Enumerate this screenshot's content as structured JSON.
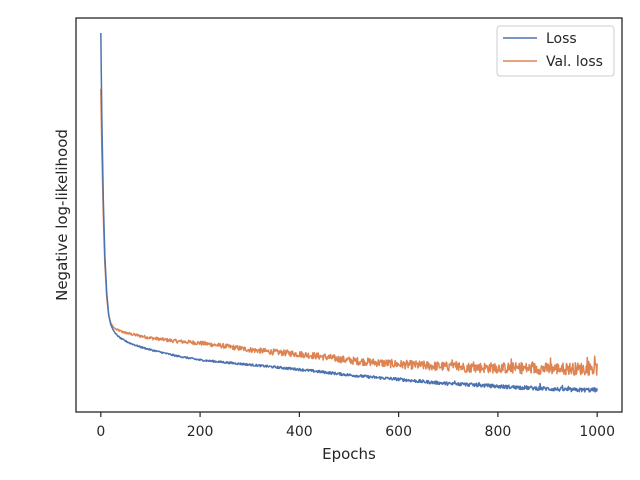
{
  "chart_data": {
    "type": "line",
    "title": "",
    "xlabel": "Epochs",
    "ylabel": "Negative log-likelihood",
    "xlim": [
      -50,
      1050
    ],
    "ylim": [
      0,
      1
    ],
    "x_ticks": [
      "0",
      "200",
      "400",
      "600",
      "800",
      "1000"
    ],
    "y_tick_labels_shown": false,
    "grid": false,
    "legend_position": "top-right",
    "series": [
      {
        "name": "Loss",
        "color": "#4c72b0",
        "x": [
          0,
          2,
          5,
          8,
          12,
          16,
          20,
          25,
          30,
          40,
          50,
          60,
          80,
          100,
          150,
          200,
          250,
          300,
          350,
          400,
          450,
          500,
          550,
          600,
          650,
          700,
          750,
          800,
          850,
          900,
          950,
          1000
        ],
        "y": [
          0.962,
          0.75,
          0.54,
          0.4,
          0.3,
          0.245,
          0.222,
          0.208,
          0.198,
          0.187,
          0.18,
          0.174,
          0.165,
          0.158,
          0.143,
          0.132,
          0.126,
          0.12,
          0.114,
          0.108,
          0.101,
          0.094,
          0.088,
          0.083,
          0.077,
          0.072,
          0.069,
          0.065,
          0.062,
          0.059,
          0.056,
          0.056
        ]
      },
      {
        "name": "Val. loss",
        "color": "#dd8452",
        "x": [
          0,
          2,
          5,
          8,
          12,
          16,
          20,
          25,
          30,
          40,
          50,
          60,
          80,
          100,
          150,
          200,
          250,
          300,
          350,
          400,
          450,
          500,
          550,
          600,
          650,
          700,
          750,
          800,
          850,
          900,
          950,
          1000
        ],
        "y": [
          0.82,
          0.67,
          0.5,
          0.38,
          0.29,
          0.245,
          0.226,
          0.216,
          0.21,
          0.205,
          0.201,
          0.198,
          0.193,
          0.188,
          0.18,
          0.175,
          0.167,
          0.158,
          0.152,
          0.147,
          0.14,
          0.131,
          0.126,
          0.121,
          0.118,
          0.115,
          0.113,
          0.112,
          0.111,
          0.11,
          0.11,
          0.109
        ]
      }
    ]
  }
}
